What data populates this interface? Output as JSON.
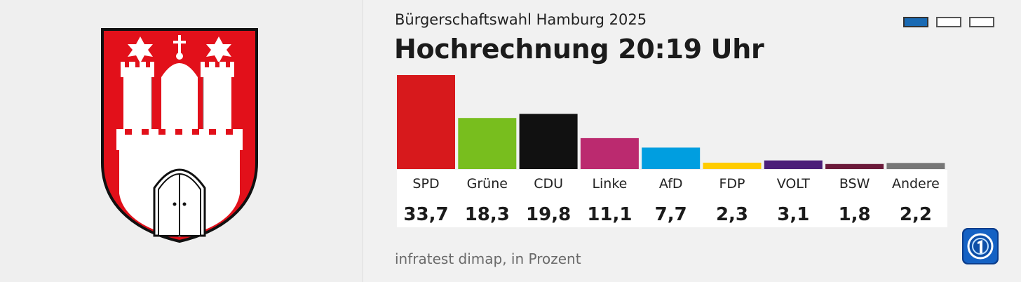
{
  "header": {
    "subtitle": "Bürgerschaftswahl Hamburg 2025",
    "title": "Hochrechnung 20:19 Uhr"
  },
  "pager": {
    "count": 3,
    "active_index": 0
  },
  "source": "infratest dimap, in Prozent",
  "colors": {
    "accent": "#1a6ab3",
    "coat_red": "#e2101a"
  },
  "chart_data": {
    "type": "bar",
    "categories": [
      "SPD",
      "Grüne",
      "CDU",
      "Linke",
      "AfD",
      "FDP",
      "VOLT",
      "BSW",
      "Andere"
    ],
    "values": [
      33.7,
      18.3,
      19.8,
      11.1,
      7.7,
      2.3,
      3.1,
      1.8,
      2.2
    ],
    "value_labels": [
      "33,7",
      "18,3",
      "19,8",
      "11,1",
      "7,7",
      "2,3",
      "3,1",
      "1,8",
      "2,2"
    ],
    "colors": [
      "#d7191c",
      "#78be1e",
      "#111111",
      "#bb2a6f",
      "#009ee0",
      "#ffcc00",
      "#4b1e78",
      "#6b1a3a",
      "#777777"
    ],
    "ylim": [
      0,
      35
    ],
    "grid": false,
    "legend": "none"
  }
}
